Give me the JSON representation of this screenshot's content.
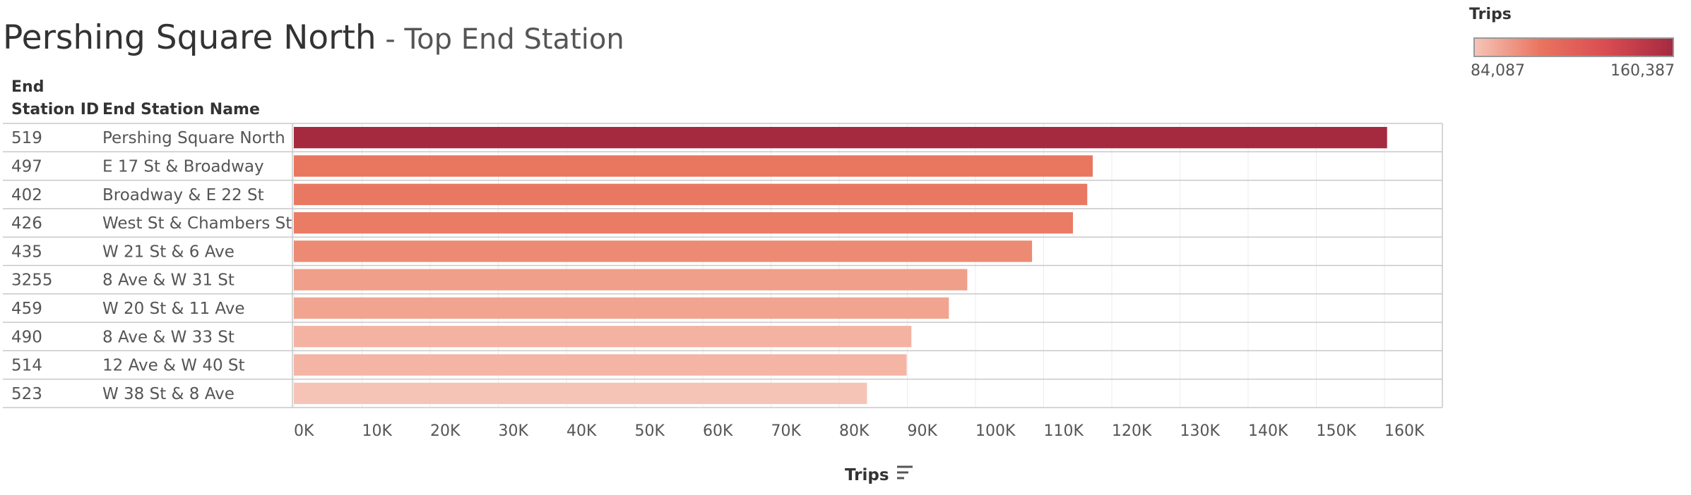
{
  "title": {
    "main": "Pershing Square North",
    "sub": " - Top End Station"
  },
  "table_headers": {
    "id": "End Station ID",
    "name": "End Station Name"
  },
  "legend": {
    "title": "Trips",
    "min_label": "84,087",
    "max_label": "160,387",
    "colors": [
      "#f6c4b7",
      "#e9745f",
      "#d94c52",
      "#a52a40"
    ]
  },
  "sort_icon": "sort-descending-icon",
  "chart_data": {
    "type": "bar",
    "orientation": "horizontal",
    "xlabel": "Trips",
    "xlim": [
      0,
      168000
    ],
    "xticks": [
      "0K",
      "10K",
      "20K",
      "30K",
      "40K",
      "50K",
      "60K",
      "70K",
      "80K",
      "90K",
      "100K",
      "110K",
      "120K",
      "130K",
      "140K",
      "150K",
      "160K"
    ],
    "grid": true,
    "color_range": [
      84087,
      160387
    ],
    "rows": [
      {
        "id": "519",
        "name": "Pershing Square North",
        "value": 160387,
        "color": "#a52a40"
      },
      {
        "id": "497",
        "name": "E 17 St & Broadway",
        "value": 117200,
        "color": "#e9765f"
      },
      {
        "id": "402",
        "name": "Broadway & E 22 St",
        "value": 116400,
        "color": "#e97862"
      },
      {
        "id": "426",
        "name": "West St & Chambers St",
        "value": 114300,
        "color": "#ea7b65"
      },
      {
        "id": "435",
        "name": "W 21 St & 6 Ave",
        "value": 108300,
        "color": "#ec8a73"
      },
      {
        "id": "3255",
        "name": "8 Ave & W 31 St",
        "value": 98800,
        "color": "#f09f8a"
      },
      {
        "id": "459",
        "name": "W 20 St & 11 Ave",
        "value": 96100,
        "color": "#f1a590"
      },
      {
        "id": "490",
        "name": "8 Ave & W 33 St",
        "value": 90600,
        "color": "#f4b3a2"
      },
      {
        "id": "514",
        "name": "12 Ave & W 40 St",
        "value": 89900,
        "color": "#f4b5a4"
      },
      {
        "id": "523",
        "name": "W 38 St & 8 Ave",
        "value": 84087,
        "color": "#f6c4b7"
      }
    ]
  }
}
